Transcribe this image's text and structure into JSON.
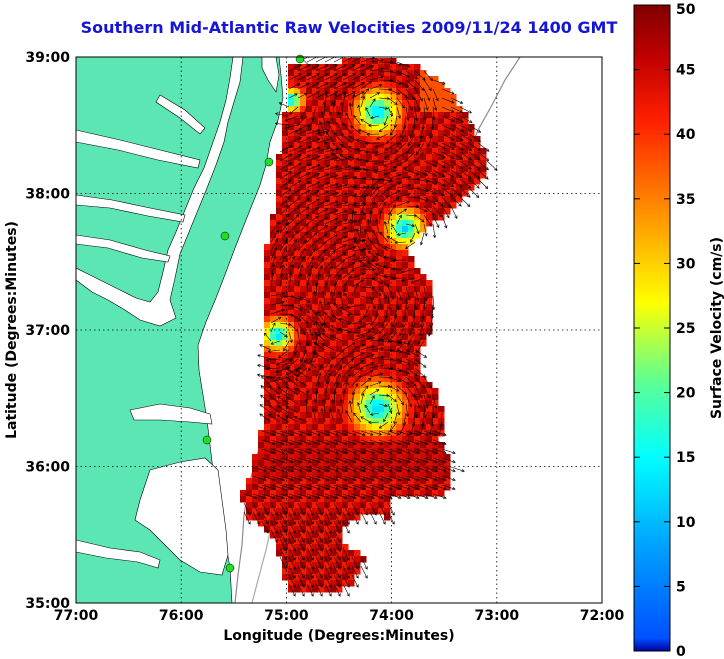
{
  "title": "Southern Mid-Atlantic Raw Velocities 2009/11/24 1400 GMT",
  "map": {
    "x_label": "Longitude (Degrees:Minutes)",
    "y_label": "Latitude (Degrees:Minutes)",
    "x_ticks": [
      "77:00",
      "76:00",
      "75:00",
      "74:00",
      "73:00",
      "72:00"
    ],
    "y_ticks": [
      "39:00",
      "38:00",
      "37:00",
      "36:00",
      "35:00"
    ],
    "lon_range": [
      -77,
      -72
    ],
    "lat_range": [
      35,
      39
    ],
    "land_color": "#5ce6b4",
    "ocean_color": "#ffffff",
    "grid": "dotted",
    "vector_color": "#000000",
    "station_color": "#22dd22"
  },
  "colorbar": {
    "label": "Surface Velocity (cm/s)",
    "min": 0,
    "max": 50,
    "ticks": [
      "50",
      "45",
      "40",
      "35",
      "30",
      "25",
      "20",
      "15",
      "10",
      "5",
      "0"
    ],
    "colormap": "jet"
  }
}
